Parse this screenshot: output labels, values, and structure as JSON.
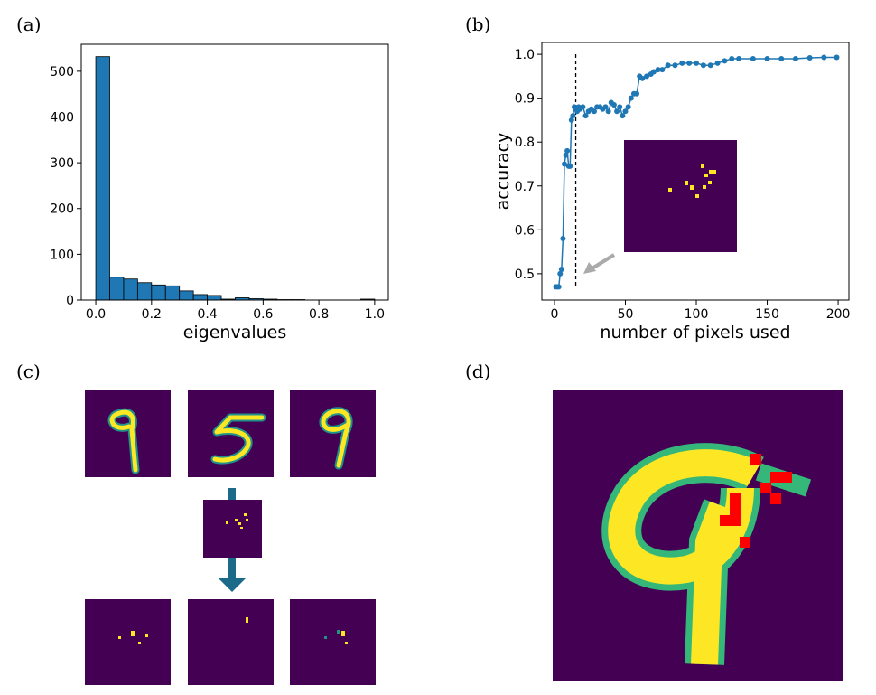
{
  "panels": [
    "(a)",
    "(b)",
    "(c)",
    "(d)"
  ],
  "chart_data": [
    {
      "type": "histogram",
      "xlabel": "eigenvalues",
      "color": "#1f77b4",
      "bins": [
        0,
        0.05,
        0.1,
        0.15,
        0.2,
        0.25,
        0.3,
        0.35,
        0.4,
        0.45,
        0.5,
        0.55,
        0.6,
        0.65,
        0.7,
        0.75,
        0.8,
        0.85,
        0.9,
        0.95,
        1.0
      ],
      "values": [
        532,
        50,
        46,
        38,
        33,
        31,
        20,
        12,
        10,
        2,
        5,
        3,
        2,
        1,
        1,
        0,
        0,
        0,
        0,
        2
      ],
      "xlim": [
        -0.052,
        1.049
      ],
      "ylim": [
        0,
        559
      ],
      "xticks": [
        {
          "value": 0,
          "label": "0.0"
        },
        {
          "value": 0.2,
          "label": "0.2"
        },
        {
          "value": 0.4,
          "label": "0.4"
        },
        {
          "value": 0.6,
          "label": "0.6"
        },
        {
          "value": 0.8,
          "label": "0.8"
        },
        {
          "value": 1,
          "label": "1.0"
        }
      ],
      "yticks": [
        0,
        100,
        200,
        300,
        400,
        500
      ]
    },
    {
      "type": "line",
      "xlabel": "number of pixels used",
      "ylabel": "accuracy",
      "color": "#1f77b4",
      "vline": 15,
      "x": [
        1,
        2,
        3,
        4,
        5,
        6,
        7,
        8,
        9,
        10,
        11,
        12,
        13,
        14,
        15,
        16,
        17,
        18,
        20,
        22,
        24,
        26,
        28,
        30,
        32,
        34,
        36,
        38,
        40,
        42,
        44,
        46,
        48,
        50,
        52,
        54,
        56,
        58,
        60,
        62,
        65,
        68,
        70,
        73,
        76,
        80,
        85,
        90,
        95,
        100,
        105,
        110,
        115,
        120,
        125,
        130,
        140,
        150,
        160,
        170,
        180,
        190,
        199
      ],
      "values": [
        0.47,
        0.47,
        0.47,
        0.5,
        0.51,
        0.58,
        0.75,
        0.77,
        0.78,
        0.745,
        0.745,
        0.85,
        0.86,
        0.88,
        0.875,
        0.87,
        0.88,
        0.875,
        0.88,
        0.86,
        0.87,
        0.875,
        0.87,
        0.88,
        0.88,
        0.875,
        0.88,
        0.87,
        0.89,
        0.885,
        0.87,
        0.88,
        0.86,
        0.87,
        0.88,
        0.9,
        0.91,
        0.91,
        0.95,
        0.945,
        0.95,
        0.955,
        0.96,
        0.965,
        0.965,
        0.975,
        0.975,
        0.98,
        0.98,
        0.98,
        0.975,
        0.975,
        0.98,
        0.985,
        0.99,
        0.99,
        0.99,
        0.99,
        0.99,
        0.99,
        0.992,
        0.993,
        0.993
      ],
      "xlim": [
        -8.9,
        207.6
      ],
      "ylim": [
        0.44,
        1.027
      ],
      "xticks": [
        0,
        50,
        100,
        150,
        200
      ],
      "yticks": [
        {
          "value": 0.5,
          "label": "0.5"
        },
        {
          "value": 0.6,
          "label": "0.6"
        },
        {
          "value": 0.7,
          "label": "0.7"
        },
        {
          "value": 0.8,
          "label": "0.8"
        },
        {
          "value": 0.9,
          "label": "0.9"
        },
        {
          "value": 1,
          "label": "1.0"
        }
      ]
    }
  ]
}
